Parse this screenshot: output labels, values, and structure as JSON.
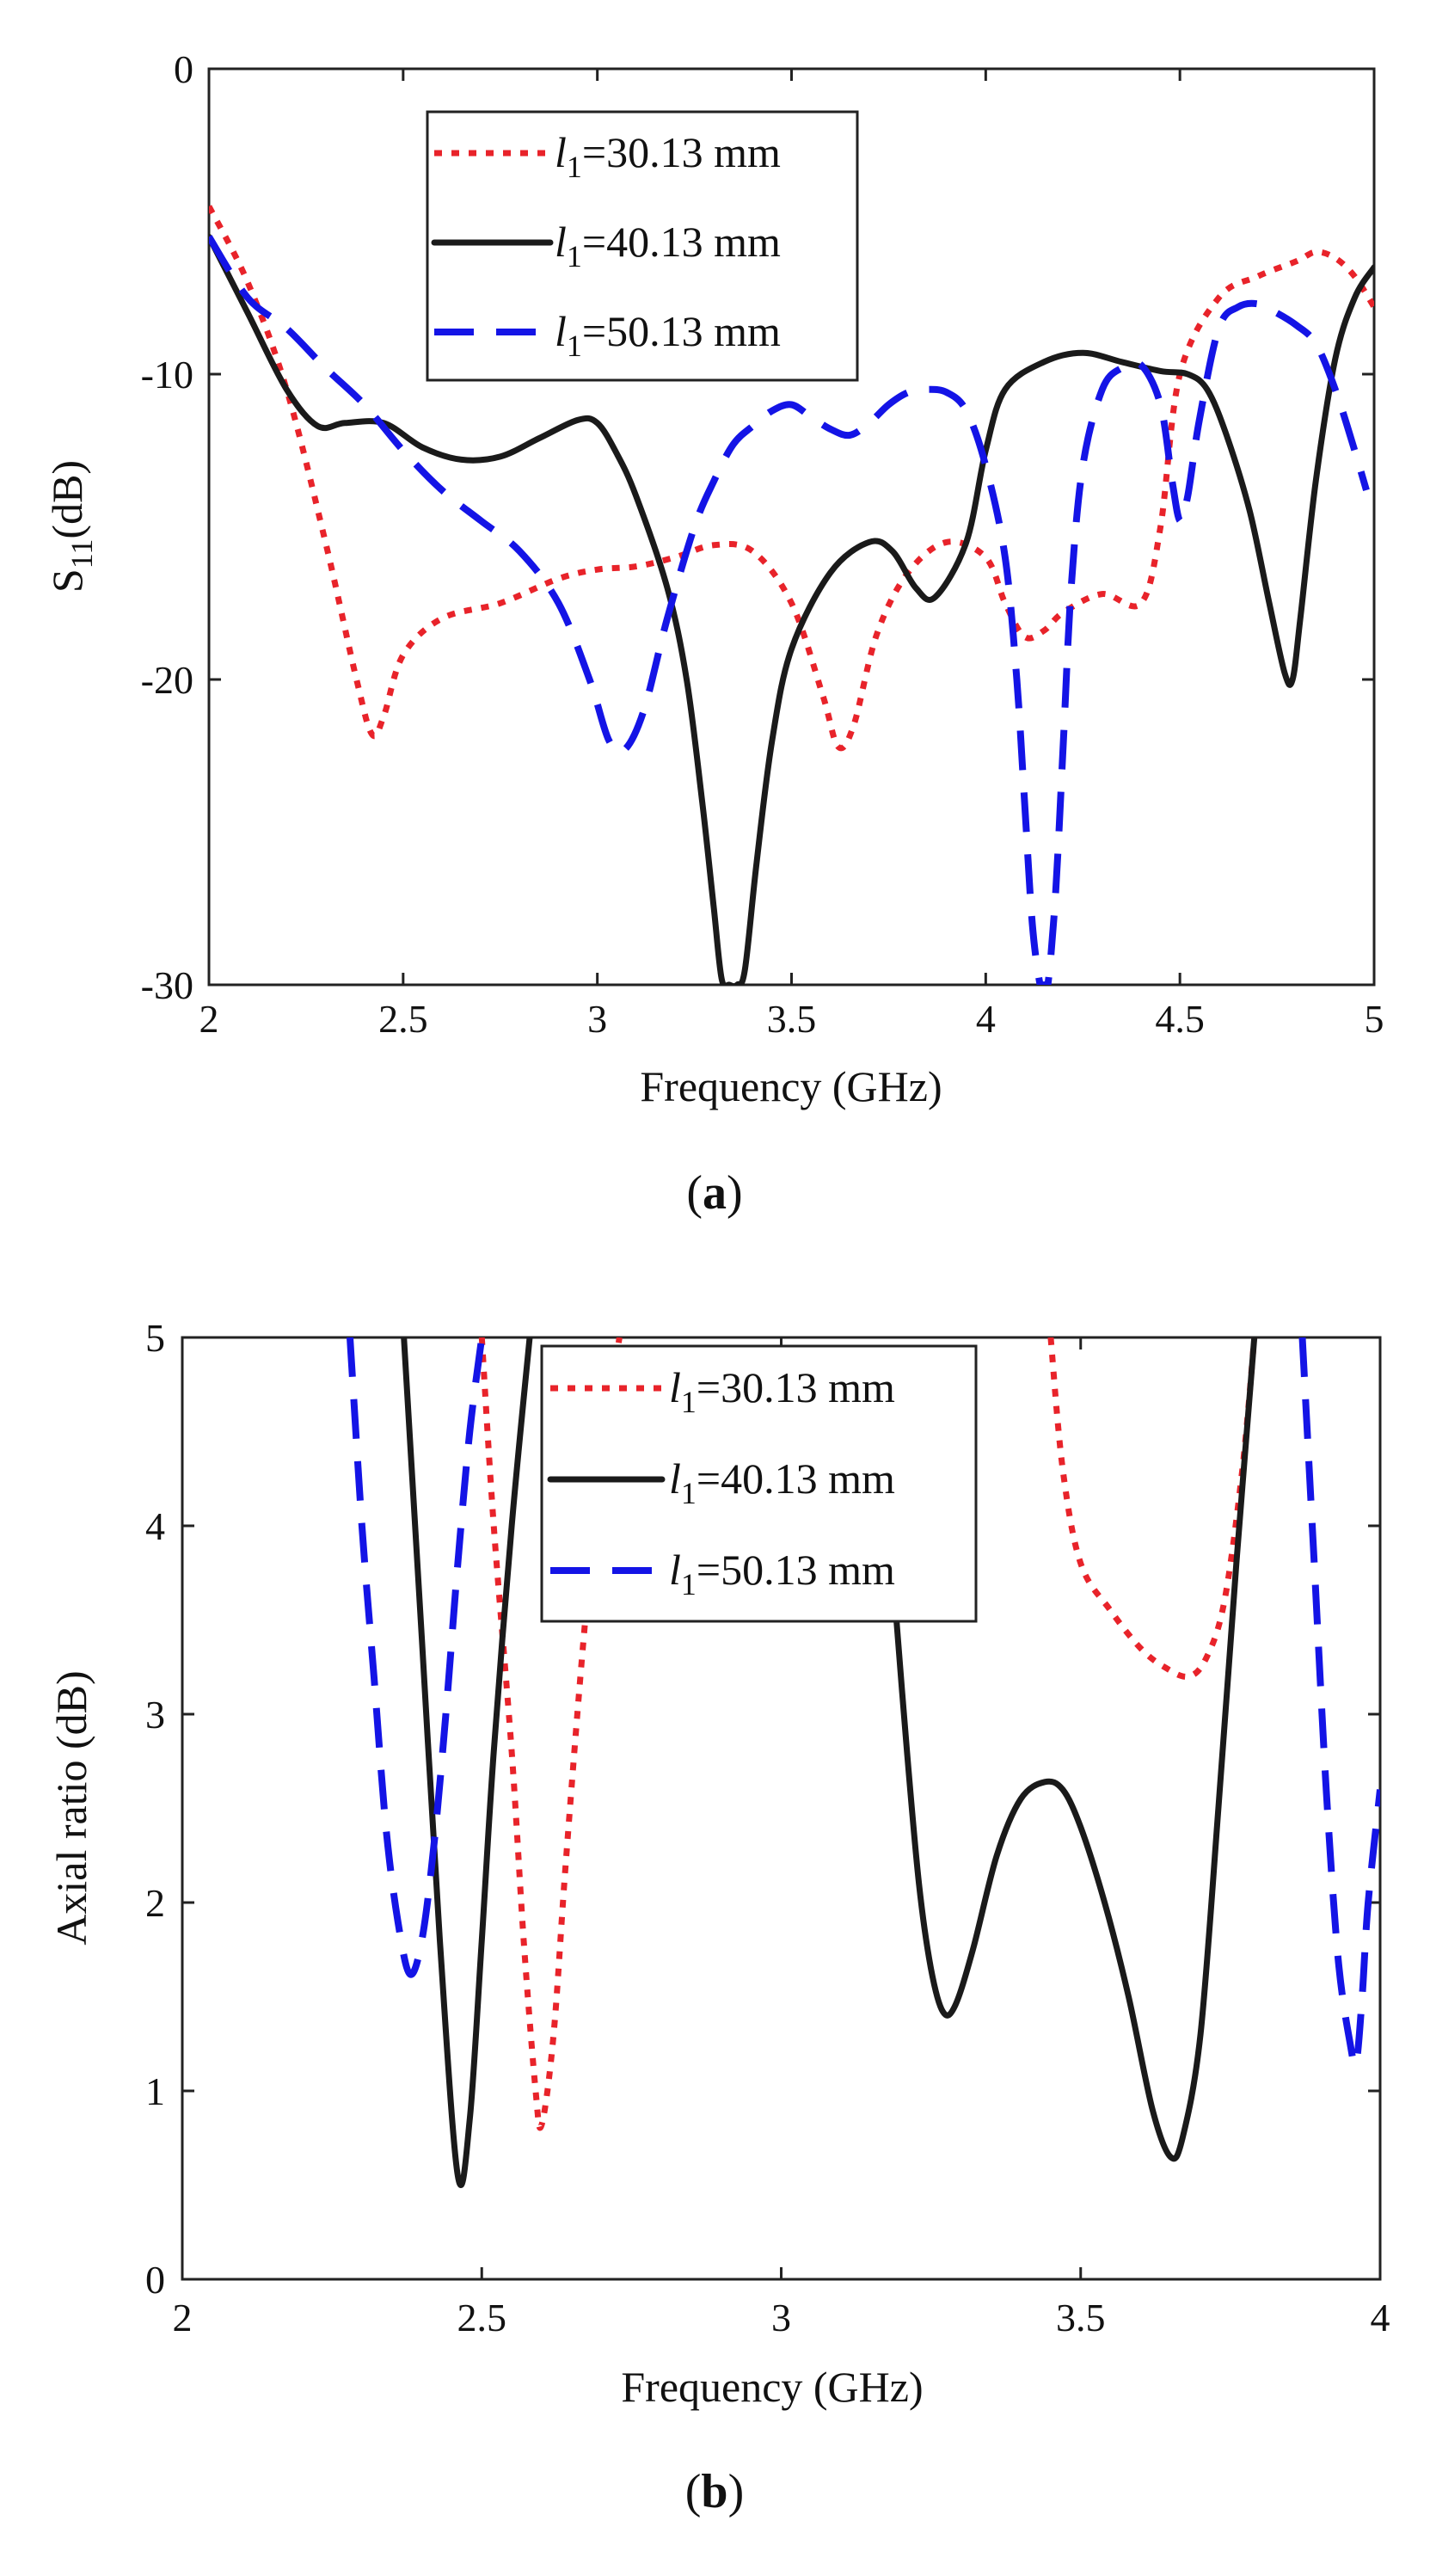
{
  "figure": {
    "panels": [
      {
        "caption_open": "(",
        "caption_letter": "a",
        "caption_close": ")"
      },
      {
        "caption_open": "(",
        "caption_letter": "b",
        "caption_close": ")"
      }
    ]
  },
  "colors": {
    "red": "#e8232a",
    "black": "#1a1a1a",
    "blue": "#1414e6"
  },
  "chart_data": [
    {
      "type": "line",
      "xlabel": "Frequency (GHz)",
      "ylabel": "S11(dB)",
      "ylabel_main": "S",
      "ylabel_sub": "11",
      "ylabel_unit": "(dB)",
      "xlim": [
        2,
        5
      ],
      "ylim": [
        -30,
        0
      ],
      "xticks": [
        2,
        2.5,
        3,
        3.5,
        4,
        4.5,
        5
      ],
      "xtick_labels": [
        "2",
        "2.5",
        "3",
        "3.5",
        "4",
        "4.5",
        "5"
      ],
      "yticks": [
        -30,
        -20,
        -10,
        0
      ],
      "ytick_labels": [
        "-30",
        "-20",
        "-10",
        "0"
      ],
      "grid": false,
      "legend_position": "top-left",
      "series": [
        {
          "name": "l1=30.13 mm",
          "label_var": "l",
          "label_sub": "1",
          "label_rest": "=30.13 mm",
          "color": "#e8232a",
          "style": "dotted",
          "x": [
            2.0,
            2.1,
            2.2,
            2.3,
            2.38,
            2.42,
            2.45,
            2.5,
            2.6,
            2.75,
            2.9,
            3.0,
            3.1,
            3.2,
            3.3,
            3.4,
            3.5,
            3.58,
            3.62,
            3.66,
            3.72,
            3.8,
            3.9,
            4.0,
            4.05,
            4.1,
            4.15,
            4.2,
            4.3,
            4.4,
            4.45,
            4.5,
            4.6,
            4.7,
            4.8,
            4.85,
            4.9,
            4.95,
            5.0
          ],
          "y": [
            -4.5,
            -7.0,
            -10.5,
            -15.5,
            -20.0,
            -21.8,
            -21.2,
            -19.2,
            -18.0,
            -17.5,
            -16.7,
            -16.4,
            -16.3,
            -16.0,
            -15.6,
            -15.8,
            -17.5,
            -20.5,
            -22.2,
            -21.5,
            -18.5,
            -16.5,
            -15.5,
            -16.0,
            -17.5,
            -18.6,
            -18.4,
            -17.8,
            -17.2,
            -17.5,
            -15.0,
            -10.0,
            -7.5,
            -6.8,
            -6.3,
            -6.0,
            -6.2,
            -6.8,
            -7.8
          ]
        },
        {
          "name": "l1=40.13 mm",
          "label_var": "l",
          "label_sub": "1",
          "label_rest": "=40.13 mm",
          "color": "#1a1a1a",
          "style": "solid",
          "x": [
            2.0,
            2.1,
            2.2,
            2.28,
            2.35,
            2.45,
            2.55,
            2.65,
            2.75,
            2.85,
            2.95,
            3.0,
            3.05,
            3.1,
            3.18,
            3.23,
            3.27,
            3.3,
            3.32,
            3.34,
            3.36,
            3.38,
            3.41,
            3.45,
            3.5,
            3.6,
            3.7,
            3.76,
            3.82,
            3.87,
            3.95,
            4.0,
            4.05,
            4.15,
            4.25,
            4.35,
            4.45,
            4.52,
            4.57,
            4.62,
            4.68,
            4.73,
            4.77,
            4.79,
            4.81,
            4.85,
            4.9,
            4.95,
            5.0
          ],
          "y": [
            -5.5,
            -8.0,
            -10.5,
            -11.7,
            -11.6,
            -11.6,
            -12.4,
            -12.8,
            -12.7,
            -12.1,
            -11.5,
            -11.6,
            -12.6,
            -14.0,
            -17.0,
            -20.0,
            -24.0,
            -27.5,
            -29.8,
            -30.0,
            -30.0,
            -29.5,
            -26.0,
            -22.0,
            -19.0,
            -16.5,
            -15.5,
            -15.8,
            -17.0,
            -17.3,
            -15.5,
            -12.5,
            -10.5,
            -9.6,
            -9.3,
            -9.6,
            -9.9,
            -10.0,
            -10.5,
            -12.0,
            -14.5,
            -17.5,
            -19.8,
            -20.0,
            -18.0,
            -13.5,
            -9.5,
            -7.5,
            -6.5
          ]
        },
        {
          "name": "l1=50.13 mm",
          "label_var": "l",
          "label_sub": "1",
          "label_rest": "=50.13 mm",
          "color": "#1414e6",
          "style": "dashed",
          "x": [
            2.0,
            2.1,
            2.2,
            2.3,
            2.4,
            2.5,
            2.6,
            2.7,
            2.8,
            2.9,
            2.98,
            3.03,
            3.07,
            3.12,
            3.18,
            3.25,
            3.3,
            3.35,
            3.4,
            3.45,
            3.5,
            3.55,
            3.6,
            3.65,
            3.7,
            3.75,
            3.8,
            3.85,
            3.9,
            3.95,
            4.0,
            4.05,
            4.08,
            4.1,
            4.12,
            4.14,
            4.15,
            4.16,
            4.18,
            4.2,
            4.22,
            4.25,
            4.3,
            4.35,
            4.4,
            4.45,
            4.48,
            4.5,
            4.52,
            4.55,
            4.6,
            4.65,
            4.7,
            4.75,
            4.8,
            4.85,
            4.9,
            4.95,
            4.98
          ],
          "y": [
            -5.5,
            -7.5,
            -8.5,
            -9.8,
            -11.0,
            -12.5,
            -13.8,
            -14.8,
            -15.8,
            -17.5,
            -20.0,
            -22.0,
            -22.3,
            -21.0,
            -18.0,
            -15.0,
            -13.5,
            -12.3,
            -11.7,
            -11.2,
            -11.0,
            -11.4,
            -11.8,
            -12.0,
            -11.6,
            -11.0,
            -10.6,
            -10.5,
            -10.6,
            -11.2,
            -13.0,
            -16.0,
            -20.0,
            -24.0,
            -28.0,
            -30.0,
            -30.0,
            -30.0,
            -27.0,
            -22.0,
            -17.0,
            -13.0,
            -10.5,
            -9.8,
            -9.7,
            -11.0,
            -13.5,
            -14.8,
            -14.0,
            -11.5,
            -8.5,
            -7.8,
            -7.7,
            -8.0,
            -8.4,
            -9.0,
            -10.5,
            -12.5,
            -13.8
          ]
        }
      ]
    },
    {
      "type": "line",
      "xlabel": "Frequency (GHz)",
      "ylabel": "Axial ratio (dB)",
      "xlim": [
        2,
        4
      ],
      "ylim": [
        0,
        5
      ],
      "xticks": [
        2,
        2.5,
        3,
        3.5,
        4
      ],
      "xtick_labels": [
        "2",
        "2.5",
        "3",
        "3.5",
        "4"
      ],
      "yticks": [
        0,
        1,
        2,
        3,
        4,
        5
      ],
      "ytick_labels": [
        "0",
        "1",
        "2",
        "3",
        "4",
        "5"
      ],
      "grid": false,
      "legend_position": "top-center",
      "series": [
        {
          "name": "l1=30.13 mm",
          "label_var": "l",
          "label_sub": "1",
          "label_rest": "=30.13 mm",
          "color": "#e8232a",
          "style": "dotted",
          "segments": [
            {
              "x": [
                2.5,
                2.52,
                2.55,
                2.57,
                2.59,
                2.6,
                2.62,
                2.64,
                2.67,
                2.7,
                2.73
              ],
              "y": [
                5.0,
                4.0,
                2.8,
                1.8,
                1.0,
                0.82,
                1.3,
                2.2,
                3.4,
                4.4,
                5.0
              ]
            },
            {
              "x": [
                3.45,
                3.47,
                3.5,
                3.55,
                3.6,
                3.64,
                3.68,
                3.71,
                3.74,
                3.77,
                3.79
              ],
              "y": [
                5.0,
                4.3,
                3.8,
                3.55,
                3.35,
                3.25,
                3.2,
                3.3,
                3.6,
                4.3,
                5.0
              ]
            }
          ]
        },
        {
          "name": "l1=40.13 mm",
          "label_var": "l",
          "label_sub": "1",
          "label_rest": "=40.13 mm",
          "color": "#1a1a1a",
          "style": "solid",
          "segments": [
            {
              "x": [
                2.37,
                2.4,
                2.43,
                2.46,
                2.48,
                2.5,
                2.52,
                2.55,
                2.58
              ],
              "y": [
                5.0,
                3.4,
                1.8,
                0.55,
                0.85,
                1.8,
                2.8,
                4.0,
                5.0
              ]
            },
            {
              "x": [
                3.19,
                3.21,
                3.23,
                3.25,
                3.27,
                3.29,
                3.32,
                3.36,
                3.4,
                3.44,
                3.47,
                3.5,
                3.54,
                3.58,
                3.62,
                3.65,
                3.67,
                3.7,
                3.73,
                3.76,
                3.79
              ],
              "y": [
                3.6,
                2.8,
                2.1,
                1.65,
                1.42,
                1.45,
                1.75,
                2.25,
                2.55,
                2.64,
                2.6,
                2.4,
                2.0,
                1.5,
                0.9,
                0.65,
                0.75,
                1.3,
                2.5,
                3.8,
                5.0
              ]
            }
          ]
        },
        {
          "name": "l1=50.13 mm",
          "label_var": "l",
          "label_sub": "1",
          "label_rest": "=50.13 mm",
          "color": "#1414e6",
          "style": "dashed",
          "segments": [
            {
              "x": [
                2.28,
                2.3,
                2.32,
                2.34,
                2.36,
                2.38,
                2.4,
                2.42,
                2.44,
                2.46,
                2.48,
                2.5
              ],
              "y": [
                5.0,
                4.0,
                3.2,
                2.4,
                1.9,
                1.62,
                1.8,
                2.3,
                3.0,
                3.8,
                4.5,
                5.0
              ]
            },
            {
              "x": [
                3.87,
                3.89,
                3.91,
                3.93,
                3.95,
                3.96,
                3.97,
                3.98,
                4.0
              ],
              "y": [
                5.0,
                3.8,
                2.6,
                1.7,
                1.25,
                1.15,
                1.5,
                2.0,
                2.6
              ]
            }
          ]
        }
      ]
    }
  ]
}
